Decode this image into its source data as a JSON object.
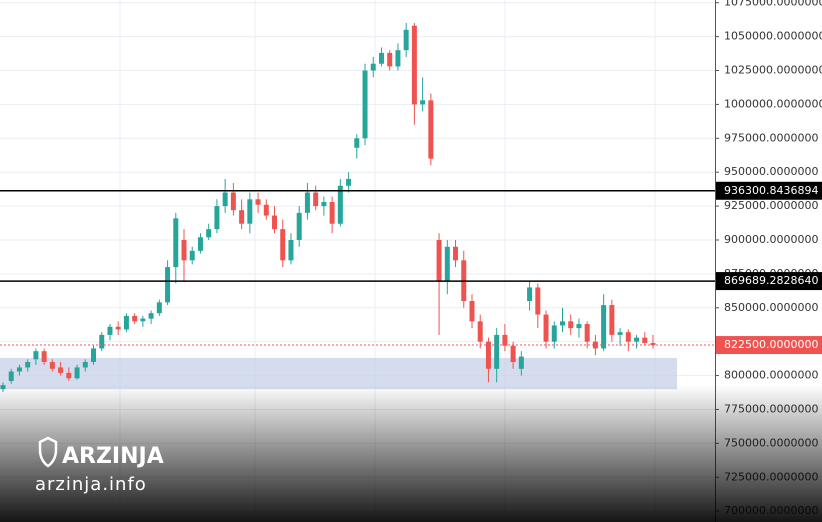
{
  "chart_data": {
    "type": "candlestick",
    "up_color": "#26a69a",
    "down_color": "#ef5350",
    "ylim": [
      692000,
      1077000
    ],
    "yticks": [
      {
        "value": 700000,
        "label": "700000.0000000"
      },
      {
        "value": 725000,
        "label": "725000.0000000"
      },
      {
        "value": 750000,
        "label": "750000.0000000"
      },
      {
        "value": 775000,
        "label": "775000.0000000"
      },
      {
        "value": 800000,
        "label": "800000.0000000"
      },
      {
        "value": 825000,
        "label": "825000.0000000"
      },
      {
        "value": 850000,
        "label": "850000.0000000"
      },
      {
        "value": 875000,
        "label": "875000.0000000"
      },
      {
        "value": 900000,
        "label": "900000.0000000"
      },
      {
        "value": 925000,
        "label": "925000.0000000"
      },
      {
        "value": 950000,
        "label": "950000.0000000"
      },
      {
        "value": 975000,
        "label": "975000.0000000"
      },
      {
        "value": 1000000,
        "label": "1000000.0000000"
      },
      {
        "value": 1025000,
        "label": "1025000.0000000"
      },
      {
        "value": 1050000,
        "label": "1050000.0000000"
      },
      {
        "value": 1075000,
        "label": "1075000.0000000"
      }
    ],
    "grid": true,
    "levels": [
      936300.8436894,
      {
        "value": 869689.282864,
        "label": "869689.2828640"
      }
    ],
    "last_price": {
      "value": 822500,
      "label": "822500.0000000",
      "color": "#ef5350"
    },
    "zone": [
      790000,
      813000
    ],
    "zone_color": "#c5d0e8",
    "open": [
      790000,
      796000,
      803000,
      806000,
      812000,
      818000,
      810000,
      806000,
      802000,
      798000,
      806000,
      810000,
      820000,
      830000,
      836000,
      834000,
      844000,
      840000,
      842000,
      846000,
      854000,
      880000,
      900000,
      885000,
      892000,
      902000,
      908000,
      925000,
      935000,
      922000,
      912000,
      930000,
      926000,
      918000,
      908000,
      885000,
      900000,
      920000,
      935000,
      925000,
      928000,
      912000,
      940000,
      968000,
      975000,
      1025000,
      1030000,
      1038000,
      1028000,
      1040000,
      1058000,
      1000000,
      1003000,
      900000,
      870000,
      895000,
      885000,
      855000,
      840000,
      825000,
      805000,
      830000,
      822000,
      805000,
      855000,
      865000,
      845000,
      825000,
      837000,
      840000,
      835000,
      838000,
      825000,
      820000,
      852000,
      830000,
      832000,
      825000,
      828000,
      824000
    ],
    "high": [
      795000,
      805000,
      808000,
      812000,
      820000,
      820000,
      812000,
      810000,
      806000,
      808000,
      812000,
      822000,
      832000,
      838000,
      840000,
      846000,
      846000,
      844000,
      848000,
      856000,
      885000,
      920000,
      908000,
      895000,
      905000,
      912000,
      930000,
      945000,
      942000,
      930000,
      935000,
      935000,
      930000,
      925000,
      915000,
      905000,
      925000,
      942000,
      940000,
      932000,
      932000,
      945000,
      950000,
      978000,
      1030000,
      1035000,
      1042000,
      1040000,
      1045000,
      1060000,
      1060000,
      1020000,
      1008000,
      905000,
      900000,
      900000,
      892000,
      860000,
      845000,
      828000,
      835000,
      838000,
      825000,
      818000,
      870000,
      868000,
      848000,
      840000,
      850000,
      845000,
      842000,
      840000,
      830000,
      860000,
      856000,
      835000,
      834000,
      830000,
      832000,
      830000
    ],
    "low": [
      788000,
      794000,
      800000,
      803000,
      808000,
      808000,
      803000,
      800000,
      796000,
      797000,
      803000,
      808000,
      818000,
      826000,
      830000,
      832000,
      838000,
      836000,
      838000,
      844000,
      852000,
      868000,
      870000,
      882000,
      890000,
      900000,
      905000,
      920000,
      918000,
      908000,
      905000,
      920000,
      915000,
      905000,
      880000,
      882000,
      895000,
      915000,
      922000,
      918000,
      905000,
      910000,
      935000,
      960000,
      970000,
      1020000,
      1028000,
      1025000,
      1025000,
      1035000,
      985000,
      995000,
      955000,
      830000,
      860000,
      880000,
      850000,
      835000,
      820000,
      795000,
      795000,
      818000,
      805000,
      800000,
      848000,
      835000,
      820000,
      820000,
      832000,
      830000,
      828000,
      820000,
      815000,
      818000,
      825000,
      822000,
      818000,
      820000,
      822000,
      820000
    ],
    "close": [
      793000,
      803000,
      806000,
      810000,
      818000,
      810000,
      805000,
      802000,
      798000,
      806000,
      810000,
      820000,
      830000,
      836000,
      834000,
      844000,
      840000,
      842000,
      846000,
      854000,
      880000,
      916000,
      885000,
      892000,
      902000,
      908000,
      925000,
      935000,
      922000,
      912000,
      930000,
      926000,
      918000,
      908000,
      885000,
      900000,
      920000,
      935000,
      925000,
      928000,
      912000,
      940000,
      945000,
      975000,
      1025000,
      1030000,
      1038000,
      1028000,
      1040000,
      1055000,
      1000000,
      1003000,
      960000,
      870000,
      895000,
      885000,
      855000,
      840000,
      825000,
      805000,
      830000,
      822000,
      810000,
      814000,
      865000,
      845000,
      825000,
      837000,
      840000,
      835000,
      838000,
      825000,
      820000,
      852000,
      830000,
      832000,
      825000,
      828000,
      824000,
      822500
    ],
    "watermark": {
      "brand": "ARZINJA",
      "site": "arzinja.info"
    }
  }
}
